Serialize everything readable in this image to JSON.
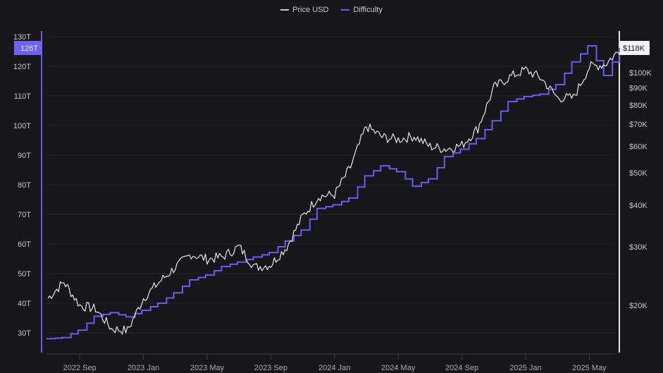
{
  "legend": {
    "price_label": "Price USD",
    "difficulty_label": "Difficulty"
  },
  "colors": {
    "background": "#16161b",
    "price_line": "#e6e6ea",
    "difficulty_line": "#6b5cf0",
    "gridline": "#26262d",
    "difficulty_badge_bg": "#6e62f2",
    "price_badge_bg": "#f4f4f6"
  },
  "left_axis": {
    "ticks": [
      "130T",
      "120T",
      "110T",
      "100T",
      "90T",
      "80T",
      "70T",
      "60T",
      "50T",
      "40T",
      "30T"
    ],
    "current_badge": "126T"
  },
  "right_axis": {
    "ticks": [
      "$100K",
      "$90K",
      "$80K",
      "$70K",
      "$60K",
      "$50K",
      "$40K",
      "$30K",
      "$20K"
    ],
    "current_badge": "$118K"
  },
  "x_axis": {
    "ticks": [
      "2022 Sep",
      "2023 Jan",
      "2023 May",
      "2023 Sep",
      "2024 Jan",
      "2024 May",
      "2024 Sep",
      "2025 Jan",
      "2025 May"
    ]
  },
  "chart_data": {
    "type": "line",
    "title": "",
    "xlabel": "",
    "ylabel_left": "Difficulty",
    "ylabel_right": "Price USD",
    "legend_position": "top-center",
    "grid": true,
    "x_range": [
      "2022 Jul",
      "2025 Jul"
    ],
    "ylim_left": [
      27,
      131
    ],
    "ylim_right_log": [
      14000,
      125000
    ],
    "x": [
      "2022 Jul",
      "2022 Aug",
      "2022 Sep",
      "2022 Oct",
      "2022 Nov",
      "2022 Dec",
      "2023 Jan",
      "2023 Feb",
      "2023 Mar",
      "2023 Apr",
      "2023 May",
      "2023 Jun",
      "2023 Jul",
      "2023 Aug",
      "2023 Sep",
      "2023 Oct",
      "2023 Nov",
      "2023 Dec",
      "2024 Jan",
      "2024 Feb",
      "2024 Mar",
      "2024 Apr",
      "2024 May",
      "2024 Jun",
      "2024 Jul",
      "2024 Aug",
      "2024 Sep",
      "2024 Oct",
      "2024 Nov",
      "2024 Dec",
      "2025 Jan",
      "2025 Feb",
      "2025 Mar",
      "2025 Apr",
      "2025 May",
      "2025 Jun",
      "2025 Jul"
    ],
    "series": [
      {
        "name": "Price USD",
        "axis": "right",
        "unit": "USD",
        "values": [
          21000,
          23500,
          20000,
          19500,
          17000,
          16800,
          21000,
          23500,
          26000,
          28500,
          27500,
          28000,
          30000,
          26000,
          26500,
          30000,
          37000,
          42500,
          43000,
          52000,
          69000,
          64000,
          63000,
          64500,
          60000,
          59000,
          60500,
          68000,
          90000,
          97000,
          102000,
          96000,
          84000,
          84000,
          104000,
          106000,
          118000
        ]
      },
      {
        "name": "Difficulty",
        "axis": "left",
        "unit": "T",
        "values": [
          28.0,
          28.4,
          30.9,
          35.6,
          36.8,
          35.4,
          37.6,
          40.0,
          43.5,
          47.9,
          49.5,
          52.4,
          53.9,
          55.6,
          57.1,
          61.0,
          64.7,
          72.0,
          73.2,
          75.5,
          83.0,
          86.4,
          84.4,
          79.5,
          82.0,
          89.5,
          92.0,
          95.6,
          101.6,
          108.1,
          109.8,
          110.6,
          113.8,
          121.5,
          126.9,
          116.9,
          126.0
        ]
      }
    ]
  }
}
